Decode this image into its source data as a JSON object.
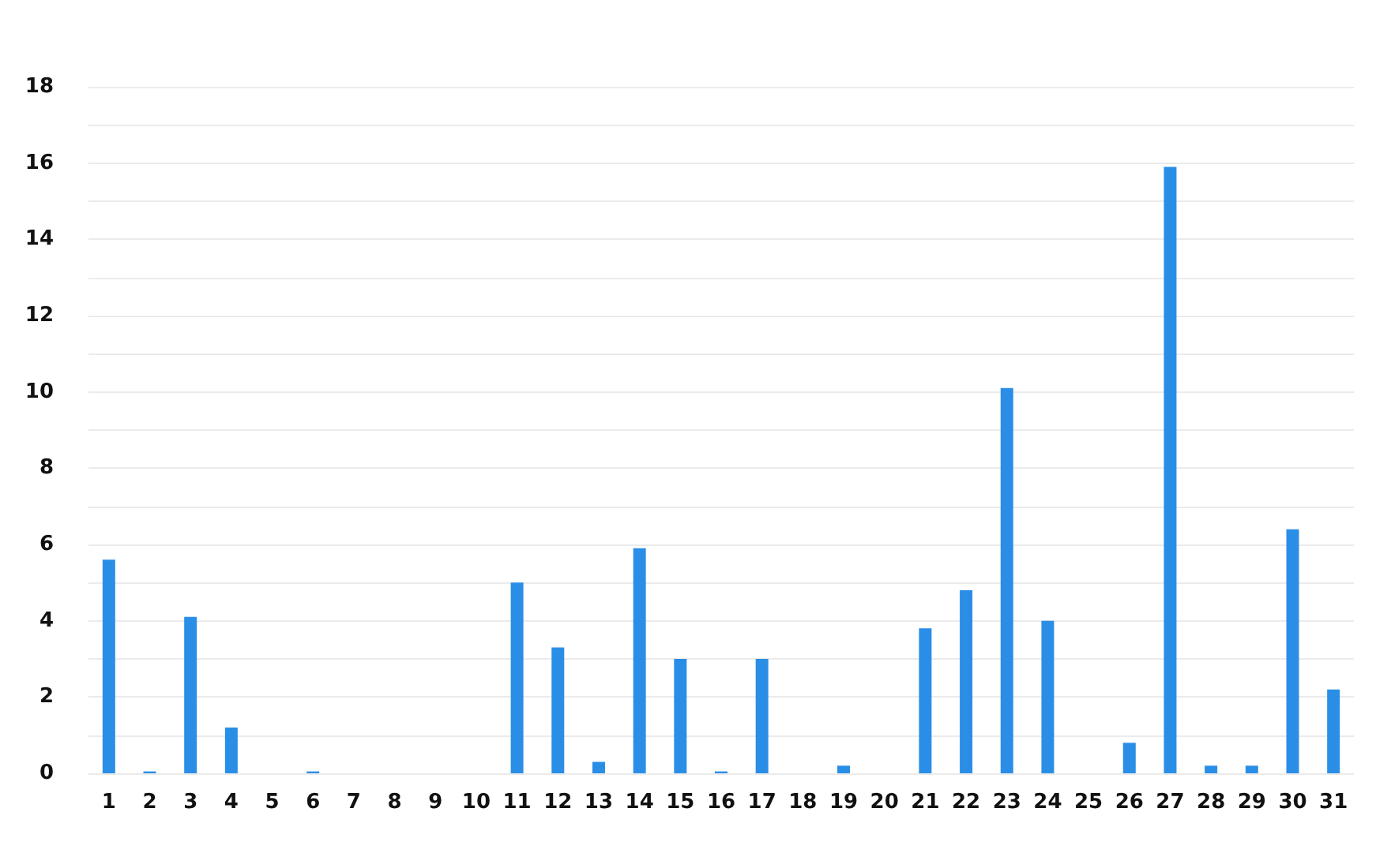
{
  "chart_data": {
    "type": "bar",
    "x": [
      1,
      2,
      3,
      4,
      5,
      6,
      7,
      8,
      9,
      10,
      11,
      12,
      13,
      14,
      15,
      16,
      17,
      18,
      19,
      20,
      21,
      22,
      23,
      24,
      25,
      26,
      27,
      28,
      29,
      30,
      31
    ],
    "values": [
      5.6,
      0.05,
      4.1,
      1.2,
      0,
      0.05,
      0,
      0,
      0,
      0,
      5.0,
      3.3,
      0.3,
      5.9,
      3.0,
      0.05,
      3.0,
      0,
      0.2,
      0,
      3.8,
      4.8,
      10.1,
      4.0,
      0,
      0.8,
      15.9,
      0.2,
      0.2,
      6.4,
      2.2
    ],
    "color": "#2b8ee6",
    "xlim": [
      0.5,
      31.5
    ],
    "xticks": [
      1,
      2,
      3,
      4,
      5,
      6,
      7,
      8,
      9,
      10,
      11,
      12,
      13,
      14,
      15,
      16,
      17,
      18,
      19,
      20,
      21,
      22,
      23,
      24,
      25,
      26,
      27,
      28,
      29,
      30,
      31
    ],
    "ylim": [
      0,
      18
    ],
    "yticks": [
      0,
      {
        "value": 1,
        "label": null
      },
      2,
      {
        "value": 3,
        "label": null
      },
      4,
      {
        "value": 5,
        "label": null
      },
      6,
      {
        "value": 7,
        "label": null
      },
      8,
      {
        "value": 9,
        "label": null
      },
      10,
      {
        "value": 11,
        "label": null
      },
      12,
      {
        "value": 13,
        "label": null
      },
      14,
      {
        "value": 15,
        "label": null
      },
      16,
      {
        "value": 17,
        "label": null
      },
      18
    ],
    "grid": "y"
  }
}
